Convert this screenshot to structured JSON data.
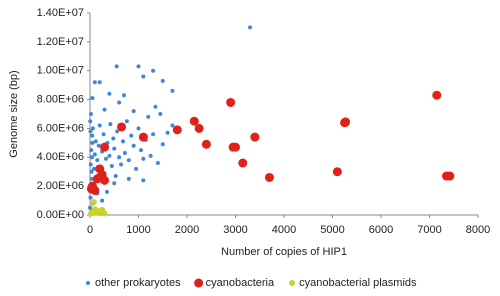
{
  "chart_data": {
    "type": "scatter",
    "x_label": "Number of copies of HIP1",
    "y_label": "Genome size (bp)",
    "xlim": [
      0,
      8000
    ],
    "xticks": [
      0,
      1000,
      2000,
      3000,
      4000,
      5000,
      6000,
      7000,
      8000
    ],
    "ylim": [
      0,
      14000000
    ],
    "yticks": [
      {
        "value": 0,
        "label": "0.00E+00"
      },
      {
        "value": 2000000,
        "label": "2.00E+06"
      },
      {
        "value": 4000000,
        "label": "4.00E+06"
      },
      {
        "value": 6000000,
        "label": "6.00E+06"
      },
      {
        "value": 8000000,
        "label": "8.00E+06"
      },
      {
        "value": 10000000,
        "label": "1.00E+07"
      },
      {
        "value": 12000000,
        "label": "1.20E+07"
      },
      {
        "value": 14000000,
        "label": "1.40E+07"
      }
    ],
    "grid": false,
    "legend": "bottom",
    "series": [
      {
        "name": "other prokaryotes",
        "color": "#3f87d8",
        "x": [
          0,
          10,
          20,
          30,
          40,
          50,
          60,
          15,
          25,
          35,
          45,
          80,
          100,
          120,
          150,
          180,
          200,
          220,
          250,
          280,
          300,
          330,
          360,
          400,
          420,
          450,
          480,
          500,
          530,
          560,
          600,
          640,
          680,
          720,
          760,
          800,
          850,
          900,
          950,
          1000,
          1050,
          1100,
          1150,
          1200,
          1250,
          1300,
          1400,
          1450,
          1500,
          1600,
          1700,
          1350,
          900,
          600,
          400,
          700,
          50,
          100,
          200,
          550,
          1000,
          1300,
          1100,
          1500,
          1700,
          3300,
          20,
          300,
          150,
          250,
          60,
          500,
          800,
          1100,
          350,
          5,
          10,
          30
        ],
        "values": [
          500000.0,
          1200000.0,
          2000000.0,
          3000000.0,
          4000000.0,
          5000000.0,
          6000000.0,
          3500000.0,
          4500000.0,
          2500000.0,
          5500000.0,
          3200000.0,
          4200000.0,
          5100000.0,
          3800000.0,
          4800000.0,
          6200000.0,
          3100000.0,
          4400000.0,
          5600000.0,
          2800000.0,
          3900000.0,
          5000000.0,
          4100000.0,
          6300000.0,
          3400000.0,
          5300000.0,
          4600000.0,
          2700000.0,
          5800000.0,
          4000000.0,
          3500000.0,
          5100000.0,
          4300000.0,
          6500000.0,
          3800000.0,
          5500000.0,
          4800000.0,
          3200000.0,
          6000000.0,
          4500000.0,
          3900000.0,
          5200000.0,
          6800000.0,
          4100000.0,
          5600000.0,
          3600000.0,
          7000000.0,
          4900000.0,
          5700000.0,
          6200000.0,
          7500000.0,
          7200000.0,
          7800000.0,
          8400000.0,
          8300000.0,
          8100000.0,
          9200000.0,
          9200000.0,
          10300000.0,
          10300000.0,
          10000000.0,
          9600000.0,
          9300000.0,
          8600000.0,
          13000000.0,
          7000000.0,
          7300000.0,
          1500000.0,
          1000000.0,
          800000.0,
          2200000.0,
          2500000.0,
          2400000.0,
          1600000.0,
          6500000.0,
          5800000.0,
          300000.0
        ]
      },
      {
        "name": "cyanobacteria",
        "color": "#e0201b",
        "x": [
          2900,
          7150,
          5250,
          5270,
          2150,
          2250,
          1800,
          650,
          1100,
          3400,
          2400,
          3000,
          2950,
          300,
          3150,
          3700,
          5100,
          7350,
          7420,
          200,
          250,
          150,
          300,
          50,
          30,
          100,
          200
        ],
        "values": [
          7800000.0,
          8300000.0,
          6400000.0,
          6450000.0,
          6500000.0,
          6000000.0,
          5900000.0,
          6100000.0,
          5400000.0,
          5400000.0,
          4900000.0,
          4700000.0,
          4700000.0,
          4700000.0,
          3600000.0,
          2600000.0,
          3000000.0,
          2700000.0,
          2700000.0,
          3200000.0,
          2800000.0,
          2500000.0,
          2400000.0,
          2000000.0,
          1800000.0,
          1700000.0,
          2600000.0
        ]
      },
      {
        "name": "cyanobacterial plasmids",
        "color": "#c9d32c",
        "x": [
          50,
          100,
          150,
          200,
          250,
          20,
          80,
          300,
          120
        ],
        "values": [
          200000.0,
          400000.0,
          300000.0,
          200000.0,
          350000.0,
          100000.0,
          900000.0,
          100000.0,
          150000.0
        ]
      }
    ]
  }
}
